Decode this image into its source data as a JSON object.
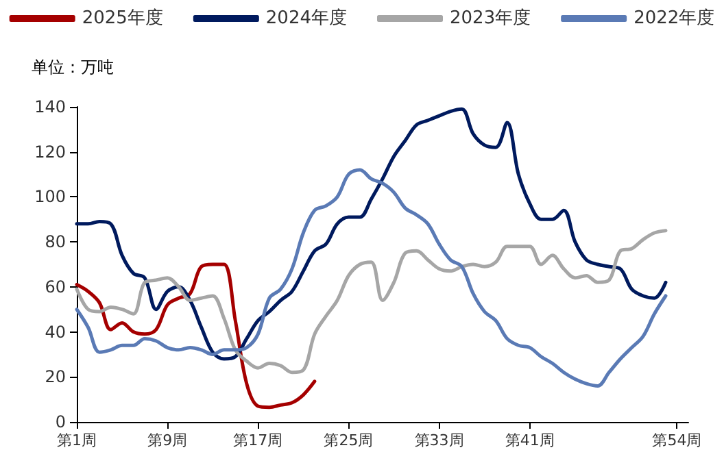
{
  "chart_data": {
    "type": "line",
    "ylabel": "单位：万吨",
    "legend": "top",
    "marker": "none",
    "line_style": "solid",
    "grid": false,
    "ylim": [
      0,
      140
    ],
    "yticks": [
      0,
      20,
      40,
      60,
      80,
      100,
      120,
      140
    ],
    "categories": [
      "第1周",
      null,
      null,
      null,
      null,
      null,
      null,
      null,
      "第9周",
      null,
      null,
      null,
      null,
      null,
      null,
      null,
      "第17周",
      null,
      null,
      null,
      null,
      null,
      null,
      null,
      "第25周",
      null,
      null,
      null,
      null,
      null,
      null,
      null,
      "第33周",
      null,
      null,
      null,
      null,
      null,
      null,
      null,
      "第41周",
      null,
      null,
      null,
      null,
      null,
      null,
      null,
      null,
      null,
      null,
      null,
      null,
      "第54周",
      null
    ],
    "series": [
      {
        "name": "2025年度",
        "color": "#a50000",
        "values": [
          61,
          58,
          53,
          41,
          44,
          40,
          39,
          41,
          52,
          55,
          57,
          69,
          70,
          70,
          45,
          17,
          7,
          6.5,
          7.5,
          8.5,
          12,
          18,
          null,
          null,
          null,
          null,
          null,
          null,
          null,
          null,
          null,
          null,
          null,
          null,
          null,
          null,
          null,
          null,
          null,
          null,
          null,
          null,
          null,
          null,
          null,
          null,
          null,
          null,
          null,
          null,
          null,
          null,
          null,
          null,
          null
        ]
      },
      {
        "name": "2024年度",
        "color": "#001a5e",
        "values": [
          88,
          88,
          89,
          88,
          74,
          66,
          64,
          50,
          58,
          60,
          54,
          42,
          31,
          28,
          29,
          37,
          45,
          49,
          54,
          58,
          67,
          76,
          79,
          88,
          91,
          91,
          99,
          108,
          118,
          125,
          132,
          134,
          136,
          138,
          139,
          128,
          123,
          122,
          133,
          110,
          97,
          90,
          90,
          94,
          80,
          72,
          70,
          69,
          68,
          59,
          56,
          55,
          62,
          null,
          null
        ]
      },
      {
        "name": "2023年度",
        "color": "#a6a6a6",
        "values": [
          59,
          50,
          49,
          51,
          50,
          48,
          62,
          63,
          64,
          60,
          54,
          55,
          56,
          46,
          32,
          27,
          24,
          26,
          25,
          22,
          23,
          39,
          47,
          54,
          65,
          70,
          71,
          54,
          62,
          75,
          76,
          72,
          68,
          67,
          69,
          70,
          69,
          71,
          78,
          78,
          78,
          70,
          74,
          68,
          64,
          65,
          62,
          63,
          76,
          77,
          81,
          84,
          85,
          null,
          null
        ]
      },
      {
        "name": "2022年度",
        "color": "#5a7ab5",
        "values": [
          50,
          42,
          31,
          32,
          34,
          34,
          37,
          36,
          33,
          32,
          33,
          32,
          30,
          32,
          32,
          33,
          39,
          55,
          59,
          68,
          84,
          94,
          96,
          100,
          110,
          112,
          108,
          106,
          102,
          95,
          92,
          88,
          79,
          72,
          69,
          57,
          49,
          45,
          37,
          34,
          33,
          29,
          26,
          22,
          19,
          17,
          16,
          22,
          28,
          33,
          38,
          48,
          56,
          null,
          null
        ]
      }
    ]
  }
}
